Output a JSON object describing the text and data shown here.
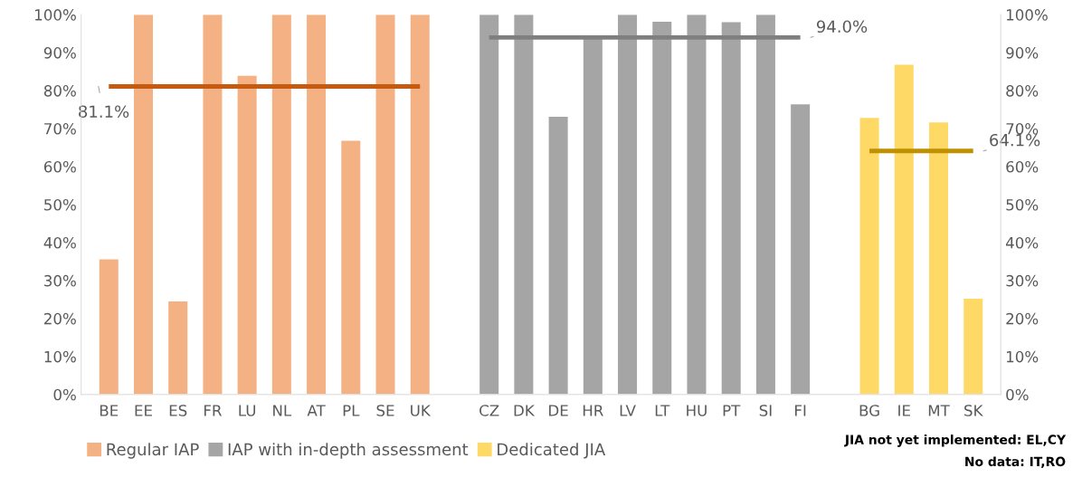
{
  "chart_data": {
    "type": "bar",
    "categories": [
      "BE",
      "EE",
      "ES",
      "FR",
      "LU",
      "NL",
      "AT",
      "PL",
      "SE",
      "UK",
      null,
      "CZ",
      "DK",
      "DE",
      "HR",
      "LV",
      "LT",
      "HU",
      "PT",
      "SI",
      "FI",
      null,
      "BG",
      "IE",
      "MT",
      "SK"
    ],
    "series": [
      {
        "name": "Regular IAP",
        "color": "#f4b183",
        "values": [
          35.6,
          100,
          24.5,
          100,
          83.9,
          100,
          100,
          66.8,
          100,
          100,
          null,
          null,
          null,
          null,
          null,
          null,
          null,
          null,
          null,
          null,
          null,
          null,
          null,
          null,
          null,
          null
        ]
      },
      {
        "name": "IAP with in-depth assessment",
        "color": "#a5a5a5",
        "values": [
          null,
          null,
          null,
          null,
          null,
          null,
          null,
          null,
          null,
          null,
          null,
          100,
          100,
          73.1,
          94,
          100,
          98.1,
          100,
          98,
          100,
          76.4,
          null,
          null,
          null,
          null,
          null
        ]
      },
      {
        "name": "Dedicated JIA",
        "color": "#ffd966",
        "values": [
          null,
          null,
          null,
          null,
          null,
          null,
          null,
          null,
          null,
          null,
          null,
          null,
          null,
          null,
          null,
          null,
          null,
          null,
          null,
          null,
          null,
          null,
          72.8,
          86.8,
          71.6,
          25.2
        ]
      },
      {
        "type": "line",
        "color": "#c55a11",
        "values": [
          81.1,
          81.1,
          81.1,
          81.1,
          81.1,
          81.1,
          81.1,
          81.1,
          81.1,
          81.1,
          null,
          null,
          null,
          null,
          null,
          null,
          null,
          null,
          null,
          null,
          null,
          null,
          null,
          null,
          null,
          null
        ],
        "value_labels": [
          "81.1%",
          null,
          null,
          null,
          null,
          null,
          null,
          null,
          null,
          null,
          null,
          null,
          null,
          null,
          null,
          null,
          null,
          null,
          null,
          null,
          null,
          null,
          null,
          null,
          null,
          null
        ]
      },
      {
        "type": "line",
        "color": "#7f7f7f",
        "values": [
          null,
          null,
          null,
          null,
          null,
          null,
          null,
          null,
          null,
          null,
          null,
          94.0,
          94.0,
          94.0,
          94.0,
          94.0,
          94.0,
          94.0,
          94.0,
          94.0,
          94.0,
          null,
          null,
          null,
          null,
          null
        ],
        "value_labels": [
          null,
          null,
          null,
          null,
          null,
          null,
          null,
          null,
          null,
          null,
          null,
          null,
          null,
          null,
          null,
          null,
          null,
          null,
          null,
          null,
          "94.0%",
          null,
          null,
          null,
          null,
          null
        ]
      },
      {
        "type": "line",
        "color": "#bf9000",
        "values": [
          null,
          null,
          null,
          null,
          null,
          null,
          null,
          null,
          null,
          null,
          null,
          null,
          null,
          null,
          null,
          null,
          null,
          null,
          null,
          null,
          null,
          null,
          64.1,
          64.1,
          64.1,
          64.1
        ],
        "value_labels": [
          null,
          null,
          null,
          null,
          null,
          null,
          null,
          null,
          null,
          null,
          null,
          null,
          null,
          null,
          null,
          null,
          null,
          null,
          null,
          null,
          null,
          null,
          null,
          null,
          null,
          "64.1%"
        ]
      }
    ],
    "ylim": [
      0,
      100
    ],
    "yticks": [
      {
        "value": 0,
        "label": "0%"
      },
      {
        "value": 10,
        "label": "10%"
      },
      {
        "value": 20,
        "label": "20%"
      },
      {
        "value": 30,
        "label": "30%"
      },
      {
        "value": 40,
        "label": "40%"
      },
      {
        "value": 50,
        "label": "50%"
      },
      {
        "value": 60,
        "label": "60%"
      },
      {
        "value": 70,
        "label": "70%"
      },
      {
        "value": 80,
        "label": "80%"
      },
      {
        "value": 90,
        "label": "90%"
      },
      {
        "value": 100,
        "label": "100%"
      }
    ],
    "y2lim": [
      0,
      100
    ],
    "y2ticks": [
      {
        "value": 0,
        "label": "0%"
      },
      {
        "value": 10,
        "label": "10%"
      },
      {
        "value": 20,
        "label": "20%"
      },
      {
        "value": 30,
        "label": "30%"
      },
      {
        "value": 40,
        "label": "40%"
      },
      {
        "value": 50,
        "label": "50%"
      },
      {
        "value": 60,
        "label": "60%"
      },
      {
        "value": 70,
        "label": "70%"
      },
      {
        "value": 80,
        "label": "80%"
      },
      {
        "value": 90,
        "label": "90%"
      },
      {
        "value": 100,
        "label": "100%"
      }
    ],
    "grid": false,
    "legend": "bottom left",
    "annotations": [
      "JIA not yet implemented: EL,CY",
      "No data: IT,RO"
    ]
  }
}
